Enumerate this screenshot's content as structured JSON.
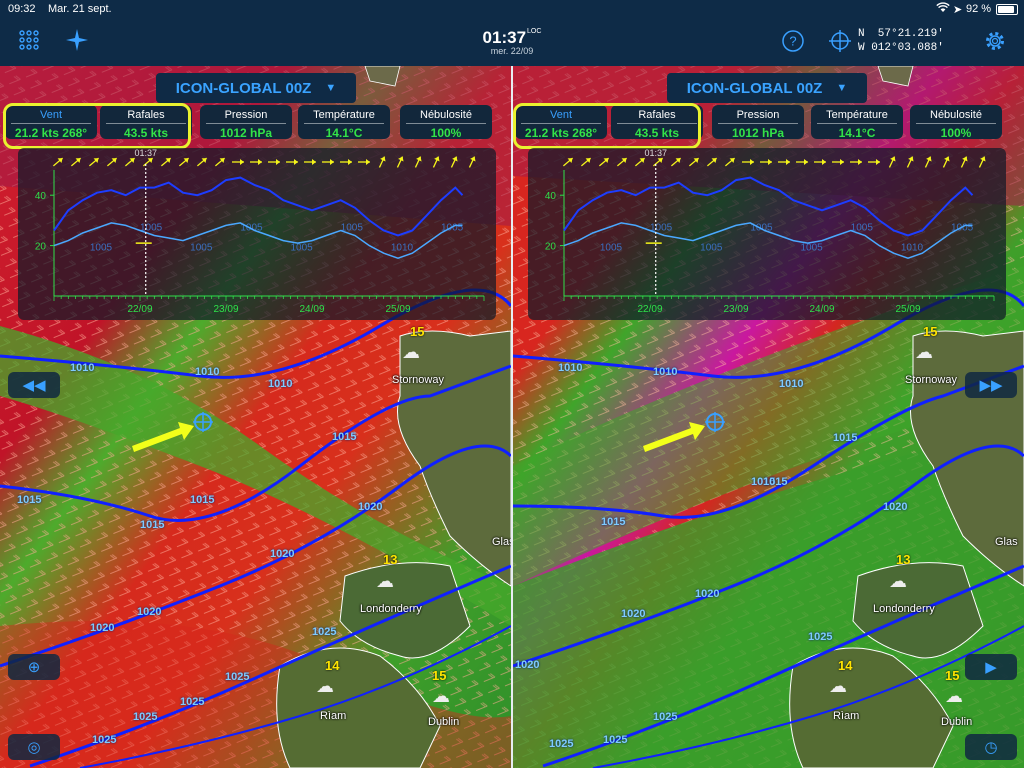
{
  "status_bar": {
    "time": "09:32",
    "date": "Mar. 21 sept.",
    "battery": "92 %"
  },
  "top_bar": {
    "clock": "01:37",
    "clock_suffix": "LOC",
    "date": "mer. 22/09",
    "coord_lat": "N  57°21.219'",
    "coord_lon": "W 012°03.088'",
    "icons": [
      "grid-icon",
      "compass-star-icon",
      "help-icon",
      "crosshair-icon",
      "gear-icon"
    ]
  },
  "left": {
    "model": "ICON-GLOBAL 00Z",
    "cards": [
      {
        "label": "Vent",
        "value": "21.2 kts 268°"
      },
      {
        "label": "Rafales",
        "value": "43.5 kts"
      },
      {
        "label": "Pression",
        "value": "1012 hPa"
      },
      {
        "label": "Température",
        "value": "14.1°C"
      },
      {
        "label": "Nébulosité",
        "value": "100%"
      }
    ]
  },
  "right": {
    "model": "ICON-GLOBAL 00Z",
    "cards": [
      {
        "label": "Vent",
        "value": "21.2 kts 268°"
      },
      {
        "label": "Rafales",
        "value": "43.5 kts"
      },
      {
        "label": "Pression",
        "value": "1012 hPa"
      },
      {
        "label": "Température",
        "value": "14.1°C"
      },
      {
        "label": "Nébulosité",
        "value": "100%"
      }
    ]
  },
  "chart_data": {
    "type": "line",
    "title": "",
    "xlabel": "",
    "ylabel": "",
    "ylim": [
      0,
      50
    ],
    "x_ticks": [
      "22/09",
      "23/09",
      "24/09",
      "25/09"
    ],
    "y_ticks": [
      20,
      40
    ],
    "cursor_label": "01:37",
    "x_hours": [
      0,
      4,
      8,
      12,
      16,
      20,
      24,
      28,
      32,
      36,
      40,
      44,
      48,
      52,
      56,
      60,
      64,
      68,
      72,
      76,
      80,
      84,
      88,
      92,
      96,
      100,
      104,
      108,
      112,
      114
    ],
    "series": [
      {
        "values": [
          26,
          34,
          38,
          41,
          42,
          40,
          43,
          43,
          45,
          41,
          40,
          42,
          46,
          47,
          44,
          42,
          38,
          36,
          34,
          36,
          38,
          35,
          30,
          26,
          24,
          26,
          32,
          38,
          43,
          40
        ]
      },
      {
        "values": [
          20,
          22,
          25,
          27,
          29,
          28,
          26,
          24,
          23,
          22,
          24,
          26,
          28,
          29,
          26,
          24,
          22,
          21,
          22,
          24,
          26,
          24,
          20,
          17,
          15,
          17,
          21,
          25,
          28,
          28
        ]
      }
    ],
    "pressure_labels": [
      "1005",
      "1005",
      "1005",
      "1005",
      "1005",
      "1005",
      "1010",
      "1005"
    ],
    "grid": false
  },
  "map": {
    "isobar_labels_left": [
      "1010",
      "1010",
      "1010",
      "1015",
      "1015",
      "1015",
      "1015",
      "1020",
      "1020",
      "1020",
      "1020",
      "1025",
      "1025",
      "1025",
      "1025",
      "1025"
    ],
    "isobar_labels_right": [
      "1010",
      "1010",
      "1010",
      "1015",
      "1015",
      "1015",
      "1015",
      "1020",
      "1020",
      "1020",
      "1020",
      "1025",
      "1025",
      "1025",
      "1025"
    ],
    "cities": [
      "Stornoway",
      "Londonderry",
      "Rìam",
      "Dublin",
      "Glas"
    ],
    "temps": [
      "15",
      "13",
      "14",
      "15"
    ]
  }
}
